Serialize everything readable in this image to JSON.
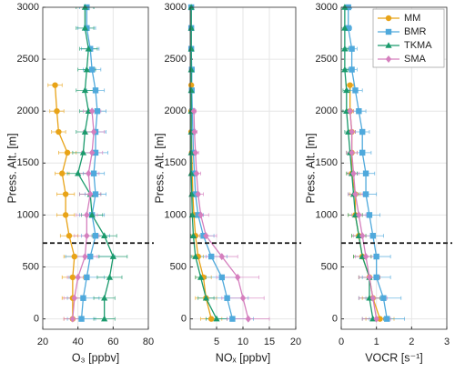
{
  "chart_data": [
    {
      "type": "profile",
      "xlabel": "O₃ [ppbv]",
      "ylabel": "Press. Alt. [m]",
      "xlim": [
        20,
        80
      ],
      "xticks": [
        20,
        40,
        60,
        80
      ],
      "ylim": [
        -100,
        3000
      ],
      "yticks": [
        0,
        500,
        1000,
        1500,
        2000,
        2500,
        3000
      ],
      "grid": true,
      "hline": 730,
      "series": [
        {
          "color": "#e8a317",
          "marker": "o",
          "y": [
            0,
            200,
            400,
            600,
            800,
            1000,
            1200,
            1400,
            1600,
            1800,
            2000,
            2250
          ],
          "x": [
            37,
            37,
            37,
            38,
            35,
            33,
            33,
            31,
            34,
            29,
            28,
            27
          ],
          "xerr": [
            5,
            6,
            6,
            6,
            5,
            5,
            5,
            4,
            5,
            4,
            4,
            4
          ]
        },
        {
          "color": "#4fa9dc",
          "marker": "s",
          "y": [
            0,
            200,
            400,
            600,
            800,
            1000,
            1200,
            1400,
            1600,
            1800,
            2000,
            2200,
            2400,
            2600,
            2800,
            3000
          ],
          "x": [
            42,
            43,
            45,
            47,
            50,
            48,
            50,
            49,
            50,
            50,
            51,
            50,
            48,
            47,
            45,
            45
          ],
          "xerr": [
            8,
            9,
            10,
            14,
            8,
            7,
            6,
            6,
            7,
            6,
            5,
            5,
            5,
            5,
            5,
            4
          ]
        },
        {
          "color": "#1a9a6c",
          "marker": "^",
          "y": [
            0,
            200,
            400,
            600,
            800,
            1000,
            1200,
            1400,
            1600,
            1800,
            2000,
            2200,
            2400,
            2600,
            2800,
            3000
          ],
          "x": [
            55,
            55,
            58,
            60,
            55,
            48,
            47,
            40,
            43,
            44,
            46,
            44,
            45,
            46,
            44,
            44
          ],
          "xerr": [
            6,
            6,
            7,
            8,
            7,
            6,
            6,
            6,
            6,
            5,
            5,
            5,
            5,
            5,
            5,
            5
          ]
        },
        {
          "color": "#d57fbe",
          "marker": "d",
          "y": [
            0,
            200,
            400,
            600,
            800,
            1000,
            1200,
            1400,
            1600,
            1800,
            2000
          ],
          "x": [
            37,
            38,
            40,
            44,
            45,
            45,
            47,
            46,
            48,
            49,
            48
          ],
          "xerr": [
            5,
            6,
            6,
            7,
            7,
            6,
            6,
            6,
            6,
            6,
            5
          ]
        }
      ]
    },
    {
      "type": "profile",
      "xlabel": "NOₓ [ppbv]",
      "ylabel": "Press. Alt. [m]",
      "xlim": [
        0,
        20
      ],
      "xticks": [
        5,
        10,
        15,
        20
      ],
      "ylim": [
        -100,
        3000
      ],
      "yticks": [
        0,
        500,
        1000,
        1500,
        2000,
        2500,
        3000
      ],
      "grid": true,
      "hline": 730,
      "series": [
        {
          "color": "#e8a317",
          "marker": "o",
          "y": [
            0,
            200,
            400,
            600,
            800,
            1000,
            1200,
            1400,
            1600,
            1800,
            2000,
            2250
          ],
          "x": [
            4,
            3,
            2.5,
            1.5,
            1,
            0.7,
            0.5,
            0.4,
            0.3,
            0.2,
            0.2,
            0.2
          ],
          "xerr": [
            2,
            2,
            1.5,
            1,
            0.8,
            0.5,
            0.4,
            0.3,
            0.2,
            0.2,
            0.2,
            0.2
          ]
        },
        {
          "color": "#4fa9dc",
          "marker": "s",
          "y": [
            0,
            200,
            400,
            600,
            800,
            1000,
            1200,
            1400,
            1600,
            1800,
            2000,
            2200,
            2400,
            2600,
            2800,
            3000
          ],
          "x": [
            8,
            7,
            6,
            4,
            2.5,
            1.5,
            1,
            0.8,
            0.6,
            0.5,
            0.4,
            0.3,
            0.3,
            0.2,
            0.2,
            0.2
          ],
          "xerr": [
            4,
            4,
            3,
            3,
            2,
            1,
            0.8,
            0.6,
            0.5,
            0.4,
            0.3,
            0.3,
            0.2,
            0.2,
            0.2,
            0.2
          ]
        },
        {
          "color": "#1a9a6c",
          "marker": "^",
          "y": [
            0,
            200,
            400,
            600,
            800,
            1000,
            1200,
            1400,
            1600,
            1800,
            2000,
            2200,
            2400,
            2600,
            2800,
            3000
          ],
          "x": [
            5,
            3,
            2,
            1,
            0.6,
            0.4,
            0.3,
            0.2,
            0.2,
            0.2,
            0.2,
            0.2,
            0.2,
            0.2,
            0.2,
            0.2
          ],
          "xerr": [
            2,
            1.5,
            1,
            0.8,
            0.5,
            0.3,
            0.2,
            0.2,
            0.2,
            0.2,
            0.2,
            0.2,
            0.2,
            0.2,
            0.2,
            0.2
          ]
        },
        {
          "color": "#d57fbe",
          "marker": "d",
          "y": [
            0,
            200,
            400,
            600,
            800,
            1000,
            1200,
            1400,
            1600,
            1800,
            2000
          ],
          "x": [
            11,
            10,
            9,
            6,
            3,
            2,
            1.5,
            1.2,
            1,
            0.8,
            0.7
          ],
          "xerr": [
            4,
            4,
            4,
            3,
            2,
            1.5,
            1,
            0.8,
            0.6,
            0.5,
            0.4
          ]
        }
      ]
    },
    {
      "type": "profile",
      "xlabel": "VOCR [s⁻¹]",
      "ylabel": "Press. Alt. [m]",
      "xlim": [
        0,
        3
      ],
      "xticks": [
        0,
        1,
        2,
        3
      ],
      "ylim": [
        -100,
        3000
      ],
      "yticks": [
        0,
        500,
        1000,
        1500,
        2000,
        2500,
        3000
      ],
      "grid": true,
      "hline": 730,
      "legend": "upper right",
      "series": [
        {
          "name": "MM",
          "color": "#e8a317",
          "marker": "o",
          "y": [
            0,
            200,
            400,
            600,
            800,
            1000,
            1200,
            1400,
            1600,
            1800,
            2000,
            2250
          ],
          "x": [
            1.1,
            0.9,
            0.8,
            0.6,
            0.5,
            0.4,
            0.4,
            0.3,
            0.3,
            0.3,
            0.25,
            0.25
          ],
          "xerr": [
            0.4,
            0.3,
            0.3,
            0.25,
            0.2,
            0.2,
            0.15,
            0.15,
            0.15,
            0.1,
            0.1,
            0.1
          ]
        },
        {
          "name": "BMR",
          "color": "#4fa9dc",
          "marker": "s",
          "y": [
            0,
            200,
            400,
            600,
            800,
            1000,
            1200,
            1400,
            1600,
            1800,
            2000,
            2200,
            2400,
            2600,
            2800,
            3000
          ],
          "x": [
            1.3,
            1.2,
            1.0,
            1.0,
            0.9,
            0.8,
            0.7,
            0.7,
            0.6,
            0.6,
            0.5,
            0.4,
            0.3,
            0.3,
            0.2,
            0.2
          ],
          "xerr": [
            0.5,
            0.5,
            0.4,
            0.4,
            0.3,
            0.3,
            0.3,
            0.25,
            0.25,
            0.2,
            0.2,
            0.2,
            0.15,
            0.15,
            0.1,
            0.1
          ]
        },
        {
          "name": "TKMA",
          "color": "#1a9a6c",
          "marker": "^",
          "y": [
            0,
            200,
            400,
            600,
            800,
            1000,
            1200,
            1400,
            1600,
            1800,
            2000,
            2200,
            2400,
            2600,
            2800,
            3000
          ],
          "x": [
            0.9,
            0.8,
            0.8,
            0.6,
            0.5,
            0.4,
            0.35,
            0.3,
            0.25,
            0.2,
            0.15,
            0.15,
            0.1,
            0.1,
            0.1,
            0.1
          ],
          "xerr": [
            0.3,
            0.3,
            0.3,
            0.25,
            0.2,
            0.2,
            0.15,
            0.15,
            0.1,
            0.1,
            0.1,
            0.1,
            0.1,
            0.1,
            0.1,
            0.1
          ]
        },
        {
          "name": "SMA",
          "color": "#d57fbe",
          "marker": "d",
          "y": [
            0,
            200,
            400,
            600,
            800,
            1000,
            1200,
            1400,
            1600,
            1800,
            2000
          ],
          "x": [
            1,
            0.9,
            0.8,
            0.7,
            0.6,
            0.5,
            0.4,
            0.35,
            0.3,
            0.3,
            0.25
          ],
          "xerr": [
            0.4,
            0.4,
            0.3,
            0.3,
            0.25,
            0.2,
            0.2,
            0.15,
            0.15,
            0.1,
            0.1
          ]
        }
      ]
    }
  ]
}
